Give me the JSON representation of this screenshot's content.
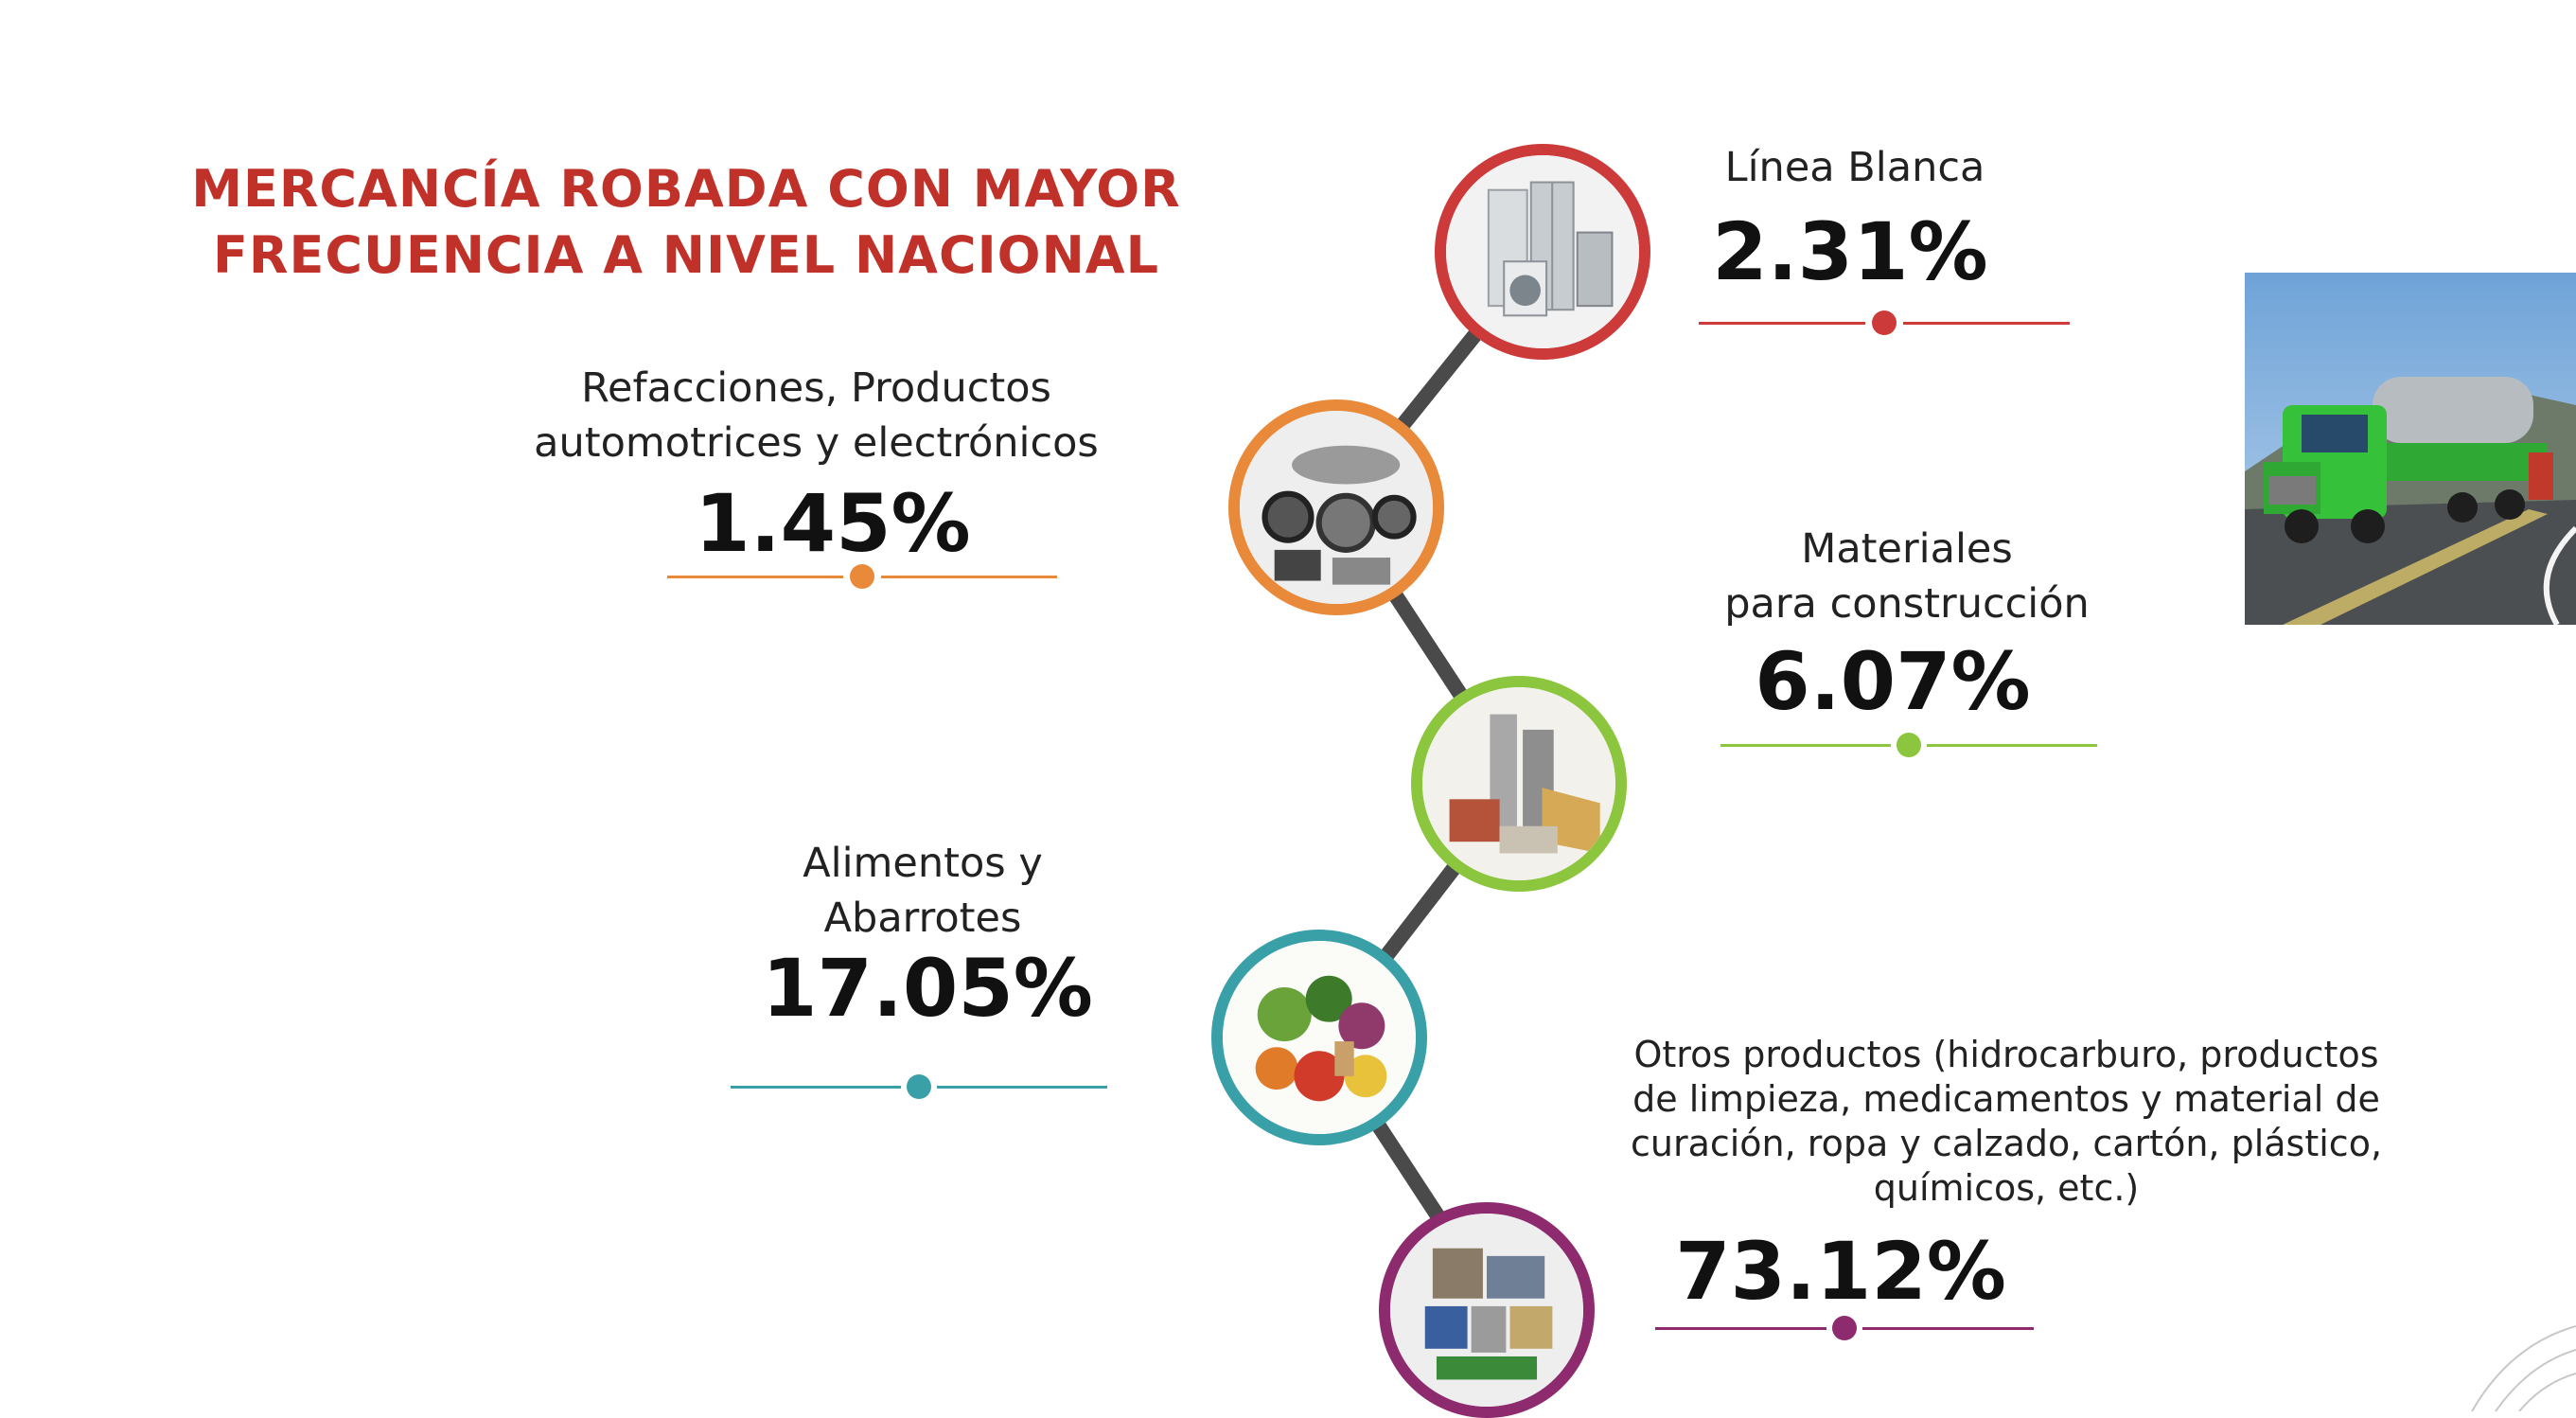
{
  "title": {
    "line1": "MERCANCÍA ROBADA CON MAYOR",
    "line2": "FRECUENCIA A NIVEL NACIONAL",
    "color": "#c0312a"
  },
  "items": [
    {
      "label_lines": [
        "Línea Blanca"
      ],
      "percent": "2.31%",
      "color": "#cc3a3a",
      "icon": "appliances-icon"
    },
    {
      "label_lines": [
        "Refacciones, Productos",
        "automotrices y electrónicos"
      ],
      "percent": "1.45%",
      "color": "#e88a3a",
      "icon": "auto-parts-icon"
    },
    {
      "label_lines": [
        "Materiales",
        "para construcción"
      ],
      "percent": "6.07%",
      "color": "#8cc63f",
      "icon": "construction-materials-icon"
    },
    {
      "label_lines": [
        "Alimentos y",
        "Abarrotes"
      ],
      "percent": "17.05%",
      "color": "#3aa0a8",
      "icon": "groceries-icon"
    },
    {
      "label_lines": [
        "Otros productos (hidrocarburo, productos",
        "de limpieza, medicamentos y material de",
        "curación, ropa y calzado, cartón, plástico,",
        "químicos, etc.)"
      ],
      "percent": "73.12%",
      "color": "#8e2a6e",
      "icon": "other-products-icon"
    }
  ],
  "connector_color": "#4a4a4a",
  "photo": {
    "icon": "tanker-truck-photo"
  }
}
